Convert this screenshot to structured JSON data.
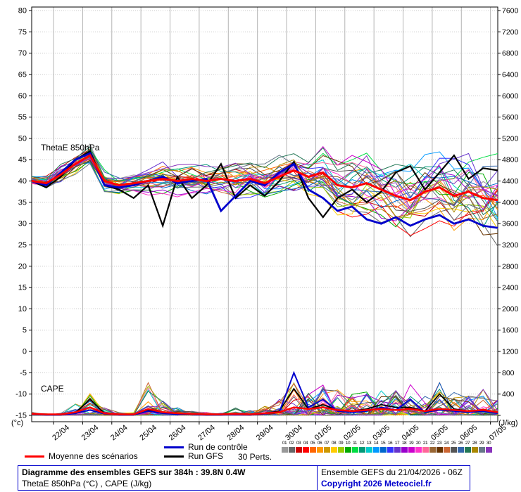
{
  "chart_data": {
    "type": "line",
    "x_hours_step": 12,
    "x_total_hours": 384,
    "x_first_tick_hour": 18,
    "x_tick_interval_hours": 24,
    "x_tick_labels": [
      "22/04",
      "23/04",
      "24/04",
      "25/04",
      "26/04",
      "27/04",
      "28/04",
      "29/04",
      "30/04",
      "01/05",
      "02/05",
      "03/05",
      "04/05",
      "05/05",
      "06/05",
      "07/05"
    ],
    "left_axis": {
      "label": "(°c)",
      "min": -15,
      "max": 80,
      "step": 5
    },
    "right_axis": {
      "label": "(J/kg)",
      "min": 0,
      "max": 7600,
      "step": 400
    },
    "labels": {
      "thetae": "ThetaE 850hPa",
      "cape": "CAPE",
      "left_unit": "(°c)",
      "right_unit": "(J/kg)"
    },
    "series": {
      "mean_thetae": {
        "name": "Moyenne des scénarios",
        "color": "#ff0000",
        "values": [
          40,
          39.5,
          41.5,
          44,
          46,
          40,
          39,
          39.5,
          40,
          40.5,
          40,
          40.5,
          40,
          40.5,
          40,
          40.5,
          39.5,
          41,
          42.5,
          41,
          42,
          39,
          38.5,
          39.5,
          38,
          36.5,
          35.5,
          37.5,
          38.5,
          36.5,
          37.5,
          36,
          35.5
        ]
      },
      "control_thetae": {
        "name": "Run de contrôle",
        "color": "#0000cc",
        "values": [
          40,
          39,
          42,
          45,
          46.5,
          39,
          38.5,
          39,
          40,
          41,
          39.5,
          40,
          40.5,
          33,
          36.5,
          40,
          39,
          42,
          44,
          38,
          36,
          33,
          34,
          31,
          30,
          31.5,
          29.5,
          31,
          32,
          30,
          31,
          29.5,
          29
        ]
      },
      "gfs_thetae": {
        "name": "Run GFS",
        "color": "#000000",
        "values": [
          40,
          38.5,
          41,
          45,
          47,
          39,
          38,
          36,
          39,
          29.5,
          41,
          36,
          39,
          44,
          36,
          39,
          36.5,
          40,
          44.5,
          36,
          31.5,
          36,
          38,
          35,
          37.5,
          42,
          43.5,
          38,
          42,
          46,
          40.5,
          43,
          42.5
        ]
      },
      "mean_cape": {
        "name": "Moyenne des scénarios (CAPE)",
        "color": "#ff0000",
        "values": [
          30,
          20,
          20,
          60,
          150,
          40,
          20,
          20,
          120,
          60,
          40,
          30,
          20,
          20,
          30,
          20,
          40,
          60,
          150,
          120,
          150,
          100,
          80,
          100,
          120,
          100,
          120,
          80,
          120,
          100,
          80,
          100,
          60
        ]
      },
      "control_cape": {
        "name": "Run de contrôle (CAPE)",
        "color": "#0000cc",
        "values": [
          20,
          10,
          10,
          40,
          100,
          30,
          10,
          10,
          80,
          40,
          20,
          20,
          10,
          10,
          20,
          10,
          30,
          60,
          800,
          150,
          300,
          80,
          60,
          80,
          150,
          100,
          300,
          60,
          100,
          80,
          60,
          80,
          40
        ]
      },
      "gfs_cape": {
        "name": "Run GFS (CAPE)",
        "color": "#000000",
        "values": [
          20,
          10,
          10,
          50,
          300,
          40,
          10,
          10,
          100,
          50,
          20,
          20,
          10,
          10,
          20,
          10,
          40,
          80,
          500,
          120,
          200,
          100,
          80,
          120,
          200,
          150,
          150,
          80,
          400,
          120,
          80,
          100,
          50
        ]
      }
    },
    "members": {
      "count": 30,
      "thetae_spread": [
        1,
        1.5,
        2,
        2,
        2.5,
        2.5,
        2,
        2,
        2.5,
        3,
        3,
        3,
        3,
        3,
        3.5,
        3.5,
        3.5,
        4,
        4.5,
        5,
        5.5,
        5.5,
        6,
        6,
        6.5,
        6.5,
        7,
        7,
        7,
        7.5,
        7.5,
        8.5,
        9
      ],
      "cape_envelope": [
        60,
        40,
        40,
        250,
        500,
        150,
        60,
        60,
        700,
        300,
        150,
        80,
        60,
        60,
        150,
        100,
        200,
        300,
        700,
        500,
        700,
        500,
        400,
        500,
        600,
        500,
        600,
        400,
        700,
        500,
        400,
        500,
        300
      ],
      "palette": [
        "#999999",
        "#666666",
        "#cc0000",
        "#ff0000",
        "#ff6600",
        "#ff9900",
        "#cc9900",
        "#ffcc00",
        "#99cc00",
        "#00aa00",
        "#00dd44",
        "#009977",
        "#00cccc",
        "#0099ff",
        "#0066cc",
        "#3333ff",
        "#6633cc",
        "#9900cc",
        "#cc00cc",
        "#ff33cc",
        "#ff6699",
        "#996633",
        "#663300",
        "#cc6633",
        "#555555",
        "#3366aa",
        "#227755",
        "#aa8800",
        "#667788",
        "#8833bb"
      ]
    }
  },
  "legend": {
    "mean_label": "Moyenne des scénarios",
    "control_label": "Run de contrôle",
    "gfs_label": "Run GFS",
    "perts_label": "30 Perts."
  },
  "footer": {
    "title": "Diagramme des ensembles GEFS sur 384h : 39.8N 0.4W",
    "subtitle": "ThetaE 850hPa (°C) , CAPE (J/kg)",
    "run_info": "Ensemble GEFS du 21/04/2026 - 06Z",
    "copyright": "Copyright 2026 Meteociel.fr"
  }
}
